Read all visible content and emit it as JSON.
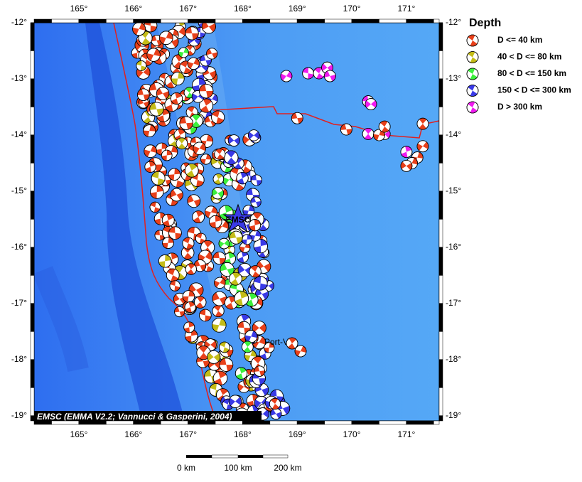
{
  "map": {
    "lon_range": [
      164.18,
      171.6
    ],
    "lat_range": [
      -12,
      -19.09
    ],
    "lon_ticks": [
      {
        "value": 165,
        "label": "165°"
      },
      {
        "value": 166,
        "label": "166°"
      },
      {
        "value": 167,
        "label": "167°"
      },
      {
        "value": 168,
        "label": "168°"
      },
      {
        "value": 169,
        "label": "169°"
      },
      {
        "value": 170,
        "label": "170°"
      },
      {
        "value": 171,
        "label": "171°"
      }
    ],
    "lat_ticks": [
      {
        "value": -12,
        "label": "-12°"
      },
      {
        "value": -13,
        "label": "-13°"
      },
      {
        "value": -14,
        "label": "-14°"
      },
      {
        "value": -15,
        "label": "-15°"
      },
      {
        "value": -16,
        "label": "-16°"
      },
      {
        "value": -17,
        "label": "-17°"
      },
      {
        "value": -18,
        "label": "-18°"
      },
      {
        "value": -19,
        "label": "-19°"
      }
    ],
    "credit": "EMSC (EMMA V2.2; Vannucci & Gasperini, 2004)",
    "marker_label": "EMSC",
    "place_label": "Port-Vila"
  },
  "legend": {
    "title": "Depth",
    "entries": [
      {
        "label": "D <= 40 km",
        "color": "#e8401a"
      },
      {
        "label": "40 < D <= 80 km",
        "color": "#c4bc18"
      },
      {
        "label": "80 < D <= 150 km",
        "color": "#3cf03c"
      },
      {
        "label": "150 < D <= 300 km",
        "color": "#3a3ae6"
      },
      {
        "label": "D > 300 km",
        "color": "#f01af0"
      }
    ]
  },
  "scale_bar": {
    "labels": [
      "0 km",
      "100 km",
      "200 km"
    ]
  }
}
